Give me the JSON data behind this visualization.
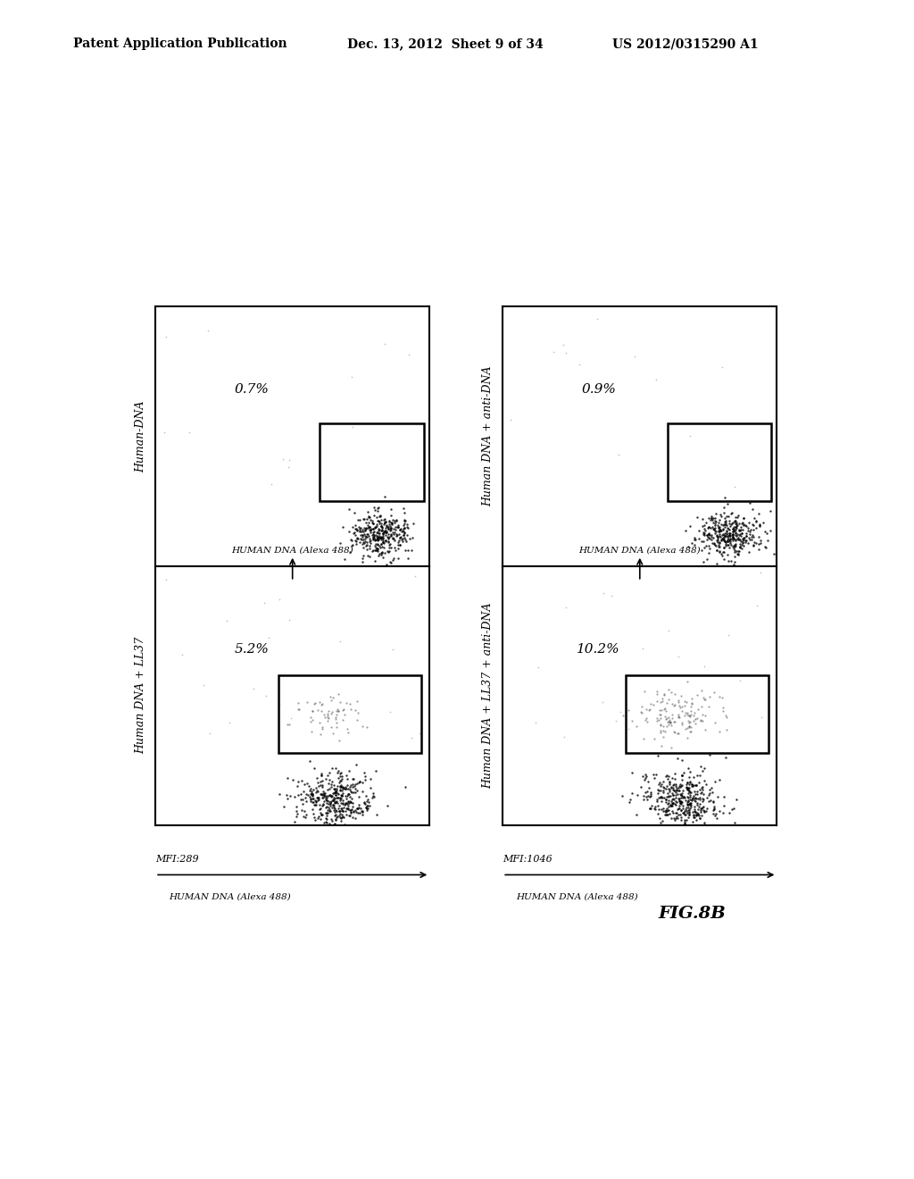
{
  "header_left": "Patent Application Publication",
  "header_mid": "Dec. 13, 2012  Sheet 9 of 34",
  "header_right": "US 2012/0315290 A1",
  "figure_label": "FIG.8B",
  "panel_titles": [
    "Human-DNA",
    "Human DNA + anti-DNA",
    "Human DNA + LL37",
    "Human DNA + LL37 + anti-DNA"
  ],
  "percentages": [
    "0.7%",
    "0.9%",
    "5.2%",
    "10.2%"
  ],
  "mfi_left": "MFI:289",
  "mfi_right": "MFI:1046",
  "xlabel_mid": "HUMAN DNA (Alexa 488)",
  "xlabel_bot_left": "HUMAN DNA (Alexa 488)",
  "xlabel_bot_right": "HUMAN DNA (Alexa 488)"
}
